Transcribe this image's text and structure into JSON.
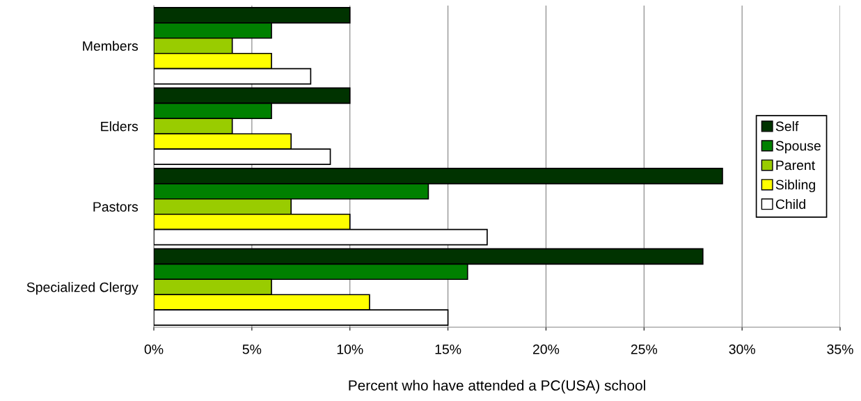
{
  "chart_data": {
    "type": "bar",
    "orientation": "horizontal",
    "xlabel": "Percent who have attended a PC(USA) school",
    "categories": [
      "Members",
      "Elders",
      "Pastors",
      "Specialized Clergy"
    ],
    "series": [
      {
        "name": "Self",
        "color": "#003300",
        "values": [
          10,
          10,
          29,
          28
        ]
      },
      {
        "name": "Spouse",
        "color": "#008000",
        "values": [
          6,
          6,
          14,
          16
        ]
      },
      {
        "name": "Parent",
        "color": "#99cc00",
        "values": [
          4,
          4,
          7,
          6
        ]
      },
      {
        "name": "Sibling",
        "color": "#ffff00",
        "values": [
          6,
          7,
          10,
          11
        ]
      },
      {
        "name": "Child",
        "color": "#ffffff",
        "values": [
          8,
          9,
          17,
          15
        ]
      }
    ],
    "xlim": [
      0,
      35
    ],
    "xticks": [
      {
        "value": 0,
        "label": "0%"
      },
      {
        "value": 5,
        "label": "5%"
      },
      {
        "value": 10,
        "label": "10%"
      },
      {
        "value": 15,
        "label": "15%"
      },
      {
        "value": 20,
        "label": "20%"
      },
      {
        "value": 25,
        "label": "25%"
      },
      {
        "value": 30,
        "label": "30%"
      },
      {
        "value": 35,
        "label": "35%"
      }
    ],
    "grid": "x",
    "legend": "right"
  }
}
